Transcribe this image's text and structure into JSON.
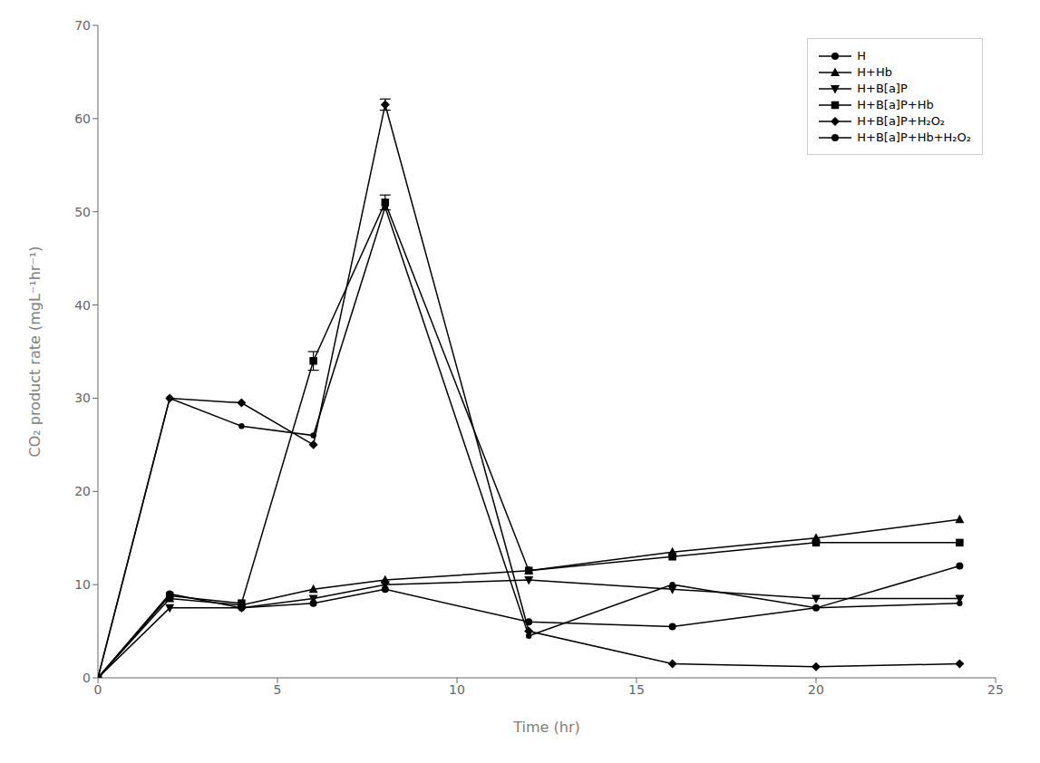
{
  "chart_data": {
    "type": "line",
    "xlabel": "Time (hr)",
    "ylabel": "CO₂ product rate (mgL⁻¹hr⁻¹)",
    "x": [
      0,
      2,
      4,
      6,
      8,
      12,
      16,
      20,
      24
    ],
    "xlim": [
      0,
      25
    ],
    "xticks": [
      0,
      5,
      10,
      15,
      20,
      25
    ],
    "ylim": [
      0,
      70
    ],
    "yticks": [
      0,
      10,
      20,
      30,
      40,
      50,
      60,
      70
    ],
    "grid": false,
    "legend": "upper right",
    "color": "black",
    "series": [
      {
        "name": "H",
        "marker": "circle",
        "values": [
          0,
          9.0,
          7.5,
          8.0,
          9.5,
          6.0,
          5.5,
          7.5,
          12.0
        ]
      },
      {
        "name": "H+Hb",
        "marker": "triangle-up",
        "values": [
          0,
          8.5,
          7.8,
          9.5,
          10.5,
          11.5,
          13.5,
          15.0,
          17.0
        ]
      },
      {
        "name": "H+B[a]P",
        "marker": "triangle-down",
        "values": [
          0,
          7.5,
          7.5,
          8.5,
          10.0,
          10.5,
          9.5,
          8.5,
          8.5
        ]
      },
      {
        "name": "H+B[a]P+Hb",
        "marker": "square",
        "values": [
          0,
          8.8,
          8.0,
          34.0,
          51.0,
          11.5,
          13.0,
          14.5,
          14.5
        ],
        "errors": [
          null,
          null,
          null,
          1.0,
          0.8,
          null,
          null,
          null,
          null
        ]
      },
      {
        "name": "H+B[a]P+H₂O₂",
        "marker": "diamond",
        "values": [
          0,
          30.0,
          29.5,
          25.0,
          61.5,
          5.0,
          1.5,
          1.2,
          1.5
        ],
        "errors": [
          null,
          null,
          null,
          null,
          0.6,
          null,
          null,
          null,
          null
        ]
      },
      {
        "name": "H+B[a]P+Hb+H₂O₂",
        "marker": "circle",
        "values": [
          0,
          30.0,
          27.0,
          26.0,
          50.5,
          4.5,
          10.0,
          7.5,
          8.0
        ]
      }
    ]
  }
}
